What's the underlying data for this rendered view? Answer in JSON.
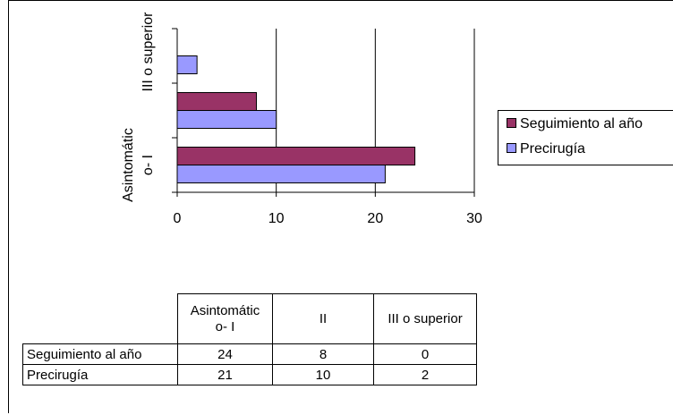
{
  "chart_data": {
    "type": "bar",
    "orientation": "horizontal",
    "categories": [
      "Asintomátic\no- I",
      "II",
      "III o superior"
    ],
    "axis_category_labels": [
      "Asintomátic\no- I",
      "III o superior"
    ],
    "series": [
      {
        "name": "Seguimiento al año",
        "values": [
          24,
          8,
          0
        ],
        "color": "#993366"
      },
      {
        "name": "Precirugía",
        "values": [
          21,
          10,
          2
        ],
        "color": "#9999ff"
      }
    ],
    "xlim": [
      0,
      30
    ],
    "xticks": [
      "0",
      "10",
      "20",
      "30"
    ],
    "grid": true,
    "legend_position": "right"
  },
  "table": {
    "column_headers": [
      "Asintomátic\no- I",
      "II",
      "III o superior"
    ],
    "rows": [
      {
        "label": "Seguimiento al año",
        "values": [
          "24",
          "8",
          "0"
        ]
      },
      {
        "label": "Precirugía",
        "values": [
          "21",
          "10",
          "2"
        ]
      }
    ]
  },
  "colors": {
    "gridline": "#000000",
    "plot_background": "#ffffff"
  }
}
